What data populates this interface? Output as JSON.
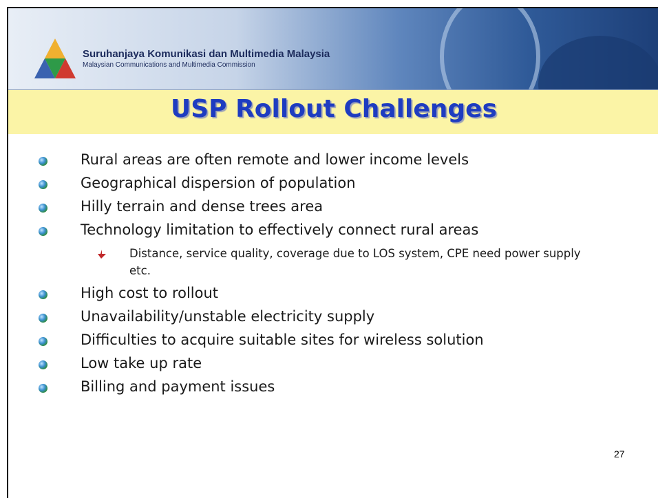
{
  "header": {
    "org_name": "Suruhanjaya Komunikasi dan Multimedia Malaysia",
    "org_name_en": "Malaysian Communications and Multimedia Commission"
  },
  "title": "USP Rollout Challenges",
  "bullets": [
    {
      "text": "Rural areas are often remote and lower income levels"
    },
    {
      "text": "Geographical dispersion of population"
    },
    {
      "text": "Hilly terrain and dense trees area"
    },
    {
      "text": "Technology limitation to effectively connect rural areas",
      "sub": [
        "Distance, service quality, coverage due to LOS system, CPE need power supply etc."
      ]
    },
    {
      "text": "High cost to rollout"
    },
    {
      "text": "Unavailability/unstable electricity supply"
    },
    {
      "text": "Difficulties to acquire suitable sites for wireless solution"
    },
    {
      "text": "Low take up rate"
    },
    {
      "text": "Billing and payment issues"
    }
  ],
  "page_number": 27
}
